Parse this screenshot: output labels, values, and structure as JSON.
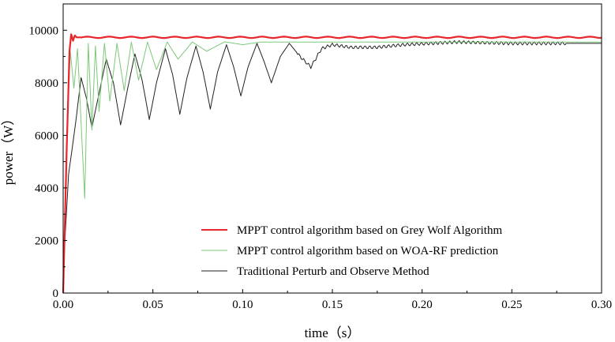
{
  "chart_data": {
    "type": "line",
    "title": "",
    "xlabel": "time（s）",
    "ylabel": "power（W）",
    "xlim": [
      0,
      0.3
    ],
    "ylim": [
      0,
      11000
    ],
    "xticks": [
      0.0,
      0.05,
      0.1,
      0.15,
      0.2,
      0.25,
      0.3
    ],
    "xtick_labels": [
      "0.00",
      "0.05",
      "0.10",
      "0.15",
      "0.20",
      "0.25",
      "0.30"
    ],
    "yticks": [
      0,
      2000,
      4000,
      6000,
      8000,
      10000
    ],
    "ytick_labels": [
      "0",
      "2000",
      "4000",
      "6000",
      "8000",
      "10000"
    ],
    "legend_position": "bottom-right",
    "series": [
      {
        "name": "MPPT control algorithm based on Grey Wolf Algorithm",
        "color": "#e8262b",
        "steady": 9730,
        "points": [
          [
            0.0,
            0
          ],
          [
            0.002,
            5500
          ],
          [
            0.0035,
            9200
          ],
          [
            0.0045,
            9850
          ],
          [
            0.0055,
            9600
          ],
          [
            0.0065,
            9800
          ],
          [
            0.0075,
            9730
          ],
          [
            0.3,
            9730
          ]
        ]
      },
      {
        "name": "MPPT control algorithm based on WOA-RF prediction",
        "color": "#7cc87a",
        "steady": 9550,
        "points": [
          [
            0.0,
            0
          ],
          [
            0.002,
            6000
          ],
          [
            0.004,
            9200
          ],
          [
            0.006,
            7800
          ],
          [
            0.008,
            9300
          ],
          [
            0.01,
            6500
          ],
          [
            0.012,
            3600
          ],
          [
            0.014,
            9500
          ],
          [
            0.016,
            6200
          ],
          [
            0.018,
            9400
          ],
          [
            0.02,
            6900
          ],
          [
            0.023,
            9500
          ],
          [
            0.026,
            7300
          ],
          [
            0.03,
            9500
          ],
          [
            0.034,
            7700
          ],
          [
            0.038,
            9550
          ],
          [
            0.042,
            8100
          ],
          [
            0.047,
            9550
          ],
          [
            0.052,
            8500
          ],
          [
            0.058,
            9550
          ],
          [
            0.064,
            8900
          ],
          [
            0.072,
            9550
          ],
          [
            0.08,
            9200
          ],
          [
            0.09,
            9560
          ],
          [
            0.1,
            9450
          ],
          [
            0.11,
            9550
          ],
          [
            0.125,
            9550
          ],
          [
            0.3,
            9550
          ]
        ]
      },
      {
        "name": "Traditional Perturb and Observe Method",
        "color": "#222222",
        "steady": 9500,
        "points": [
          [
            0.0,
            800
          ],
          [
            0.003,
            4500
          ],
          [
            0.007,
            6500
          ],
          [
            0.01,
            8200
          ],
          [
            0.013,
            7400
          ],
          [
            0.016,
            6300
          ],
          [
            0.02,
            7600
          ],
          [
            0.024,
            8900
          ],
          [
            0.028,
            8000
          ],
          [
            0.032,
            6400
          ],
          [
            0.036,
            7800
          ],
          [
            0.04,
            9100
          ],
          [
            0.044,
            8100
          ],
          [
            0.048,
            6600
          ],
          [
            0.052,
            8000
          ],
          [
            0.057,
            9300
          ],
          [
            0.061,
            8300
          ],
          [
            0.065,
            6800
          ],
          [
            0.069,
            8200
          ],
          [
            0.074,
            9400
          ],
          [
            0.078,
            8400
          ],
          [
            0.082,
            7000
          ],
          [
            0.086,
            8400
          ],
          [
            0.091,
            9450
          ],
          [
            0.095,
            8600
          ],
          [
            0.099,
            7500
          ],
          [
            0.103,
            8600
          ],
          [
            0.108,
            9500
          ],
          [
            0.112,
            8800
          ],
          [
            0.116,
            8000
          ],
          [
            0.121,
            9000
          ],
          [
            0.126,
            9500
          ],
          [
            0.132,
            9000
          ],
          [
            0.138,
            8600
          ],
          [
            0.144,
            9300
          ],
          [
            0.15,
            9450
          ],
          [
            0.16,
            9350
          ],
          [
            0.175,
            9350
          ],
          [
            0.19,
            9450
          ],
          [
            0.205,
            9500
          ],
          [
            0.22,
            9550
          ],
          [
            0.25,
            9500
          ],
          [
            0.3,
            9500
          ]
        ]
      }
    ]
  }
}
